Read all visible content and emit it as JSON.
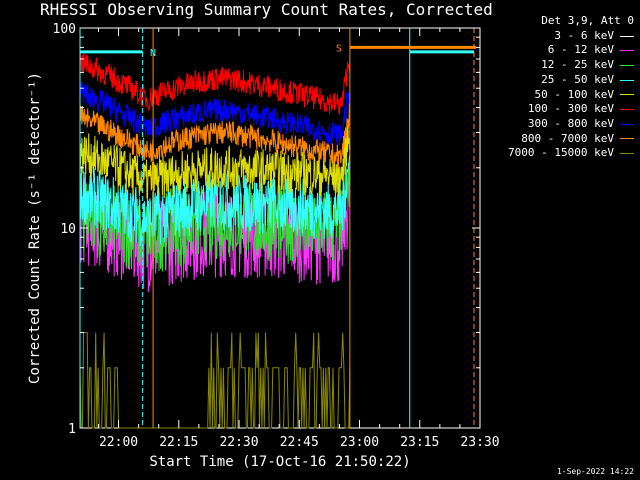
{
  "chart_data": {
    "type": "line",
    "title": "RHESSI Observing Summary Count Rates, Corrected",
    "xlabel": "Start Time (17-Oct-16 21:50:22)",
    "ylabel": "Corrected Count Rate (s⁻¹ detector⁻¹)",
    "yscale": "log",
    "ylim": [
      1,
      100
    ],
    "y_ticks": [
      "1",
      "10",
      "100"
    ],
    "x_tick_labels": [
      "22:00",
      "22:15",
      "22:30",
      "22:45",
      "23:00",
      "23:15",
      "23:30"
    ],
    "x_tick_minutes": [
      0,
      15,
      30,
      45,
      60,
      75,
      90
    ],
    "x_range_minutes": [
      -9.6,
      90
    ],
    "legend_header": "Det 3,9, Att 0",
    "series": [
      {
        "name": "3 - 6 keV",
        "color": "#000000",
        "start": 17,
        "mid": 11,
        "peak": 14,
        "end": 12,
        "noise": 0.45
      },
      {
        "name": "6 - 12 keV",
        "color": "#ff33ff",
        "start": 11,
        "mid": 8,
        "peak": 9.5,
        "end": 8.5,
        "noise": 0.45
      },
      {
        "name": "12 - 25 keV",
        "color": "#33dd33",
        "start": 12,
        "mid": 9,
        "peak": 11,
        "end": 10,
        "noise": 0.4
      },
      {
        "name": "25 - 50 keV",
        "color": "#33ffff",
        "start": 15,
        "mid": 11,
        "peak": 13.5,
        "end": 12,
        "noise": 0.3
      },
      {
        "name": "50 - 100 keV",
        "color": "#dddd00",
        "start": 24,
        "mid": 17,
        "peak": 20,
        "end": 18,
        "noise": 0.22
      },
      {
        "name": "100 - 300 keV",
        "color": "#ff0000",
        "start": 68,
        "mid": 44,
        "peak": 56,
        "end": 40,
        "noise": 0.12
      },
      {
        "name": "300 - 800 keV",
        "color": "#0000ff",
        "start": 48,
        "mid": 31,
        "peak": 39,
        "end": 28,
        "noise": 0.12
      },
      {
        "name": "800 - 7000 keV",
        "color": "#ff8800",
        "start": 36,
        "mid": 24,
        "peak": 30,
        "end": 22,
        "noise": 0.12
      },
      {
        "name": "7000 - 15000 keV",
        "color": "#888800",
        "start": 1,
        "mid": 1,
        "peak": 1,
        "end": 1,
        "noise": 0.0
      }
    ],
    "data_end_minute": 57.6,
    "annotations": [
      {
        "label": "N",
        "color": "#33ffff",
        "x_start": -9.6,
        "x_end": 6.0
      },
      {
        "label": "S",
        "color": "#ff8800",
        "x_start": 57.6,
        "x_end": 89.0
      }
    ],
    "bar_segments": [
      {
        "color": "#33ffff",
        "x_start": -9.6,
        "x_end": 6.0,
        "y": 76
      },
      {
        "color": "#ff8800",
        "x_start": 57.6,
        "x_end": 89.0,
        "y": 80
      },
      {
        "color": "#33ffff",
        "x_start": 72.5,
        "x_end": 88.5,
        "y": 76
      }
    ],
    "vertical_markers": [
      {
        "x": -9.6,
        "color": "#33ffff",
        "style": "solid"
      },
      {
        "x": 6.0,
        "color": "#33ffff",
        "style": "dashed"
      },
      {
        "x": 8.6,
        "color": "#ff8800",
        "style": "solid"
      },
      {
        "x": 57.6,
        "color": "#ff8800",
        "style": "solid"
      },
      {
        "x": 72.5,
        "color": "#33ffff",
        "style": "solid"
      },
      {
        "x": 88.5,
        "color": "#ff8800",
        "style": "dashed"
      }
    ]
  },
  "timestamp": "1-Sep-2022 14:22"
}
